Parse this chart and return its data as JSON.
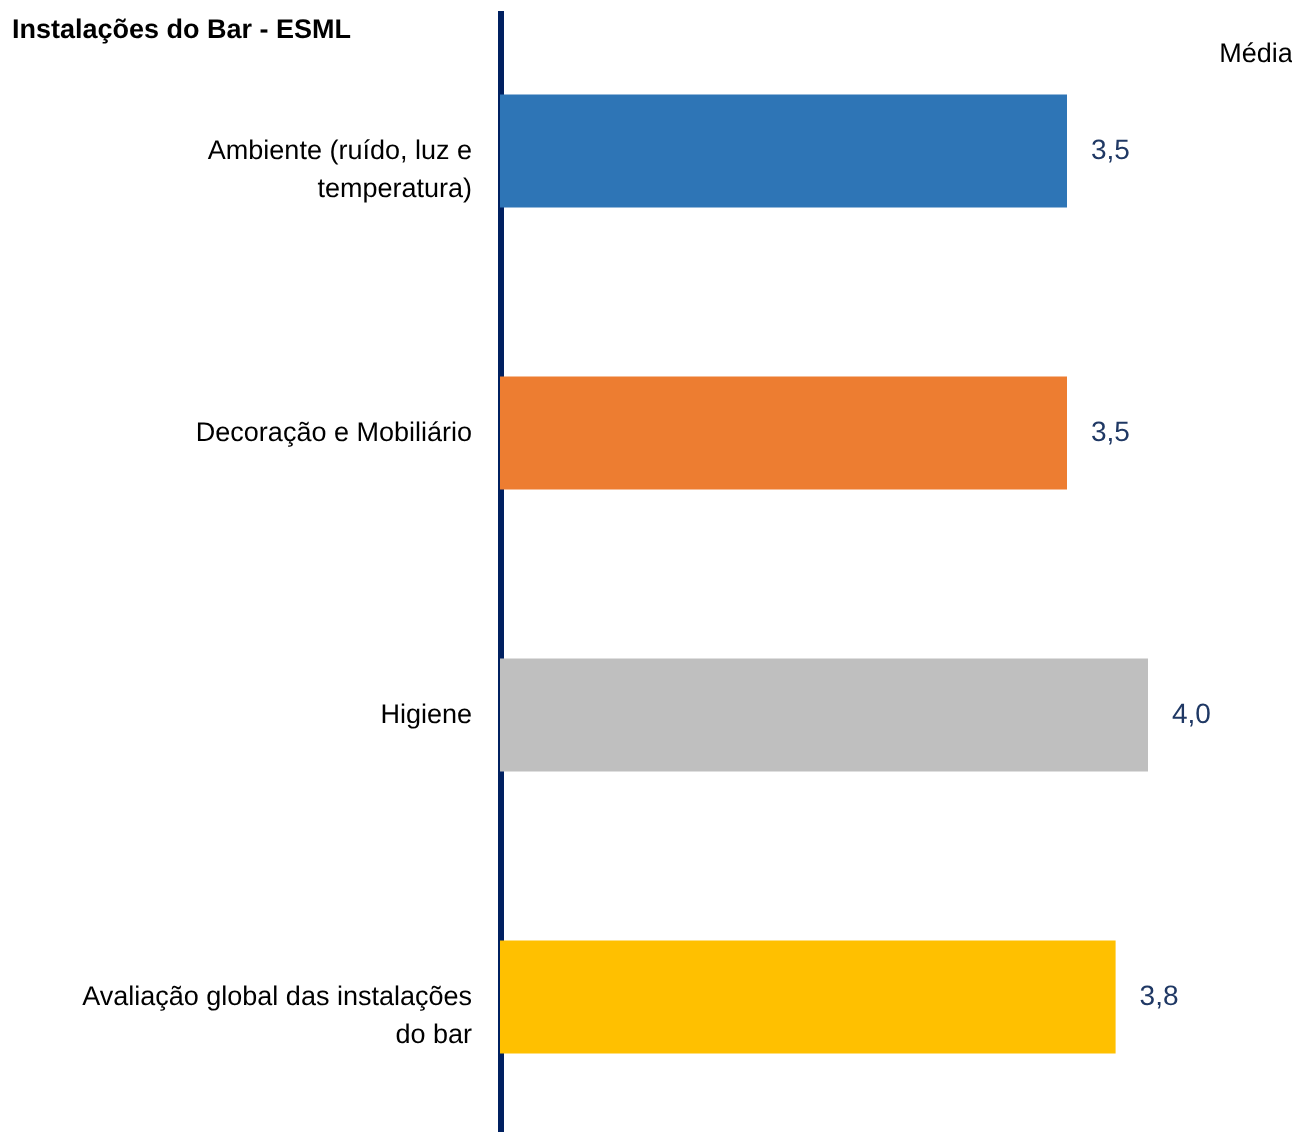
{
  "chart_data": {
    "type": "bar",
    "orientation": "horizontal",
    "title": "Instalações do Bar - ESML",
    "annotations": [
      "Média"
    ],
    "categories": [
      "Ambiente (ruído, luz e temperatura)",
      "Decoração e Mobiliário",
      "Higiene",
      "Avaliação global das instalações do bar"
    ],
    "values": [
      3.5,
      3.5,
      4.0,
      3.8
    ],
    "value_labels": [
      "3,5",
      "3,5",
      "4,0",
      "3,8"
    ],
    "colors": [
      "#2e75b6",
      "#ed7d31",
      "#bfbfbf",
      "#ffc000"
    ]
  }
}
